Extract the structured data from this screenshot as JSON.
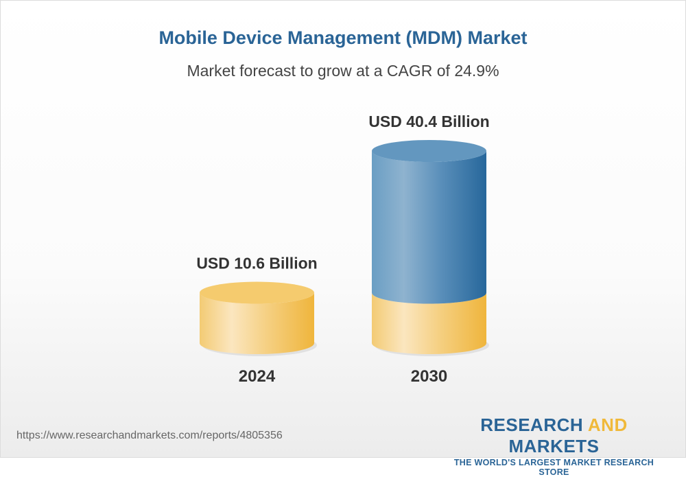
{
  "chart_data": {
    "type": "bar",
    "style": "3d-cylinder",
    "title": "Mobile Device Management (MDM) Market",
    "subtitle": "Market forecast to grow at a CAGR of 24.9%",
    "categories": [
      "2024",
      "2030"
    ],
    "values": [
      10.6,
      40.4
    ],
    "data_labels": [
      "USD 10.6 Billion",
      "USD 40.4 Billion"
    ],
    "unit": "USD Billion",
    "colors": {
      "base": "#f2c462",
      "growth": "#4a86b4"
    }
  },
  "footer": {
    "url": "https://www.researchandmarkets.com/reports/4805356",
    "logo_part1": "RESEARCH ",
    "logo_part2": "AND",
    "logo_part3": " MARKETS",
    "tagline": "THE WORLD'S LARGEST MARKET RESEARCH STORE"
  }
}
